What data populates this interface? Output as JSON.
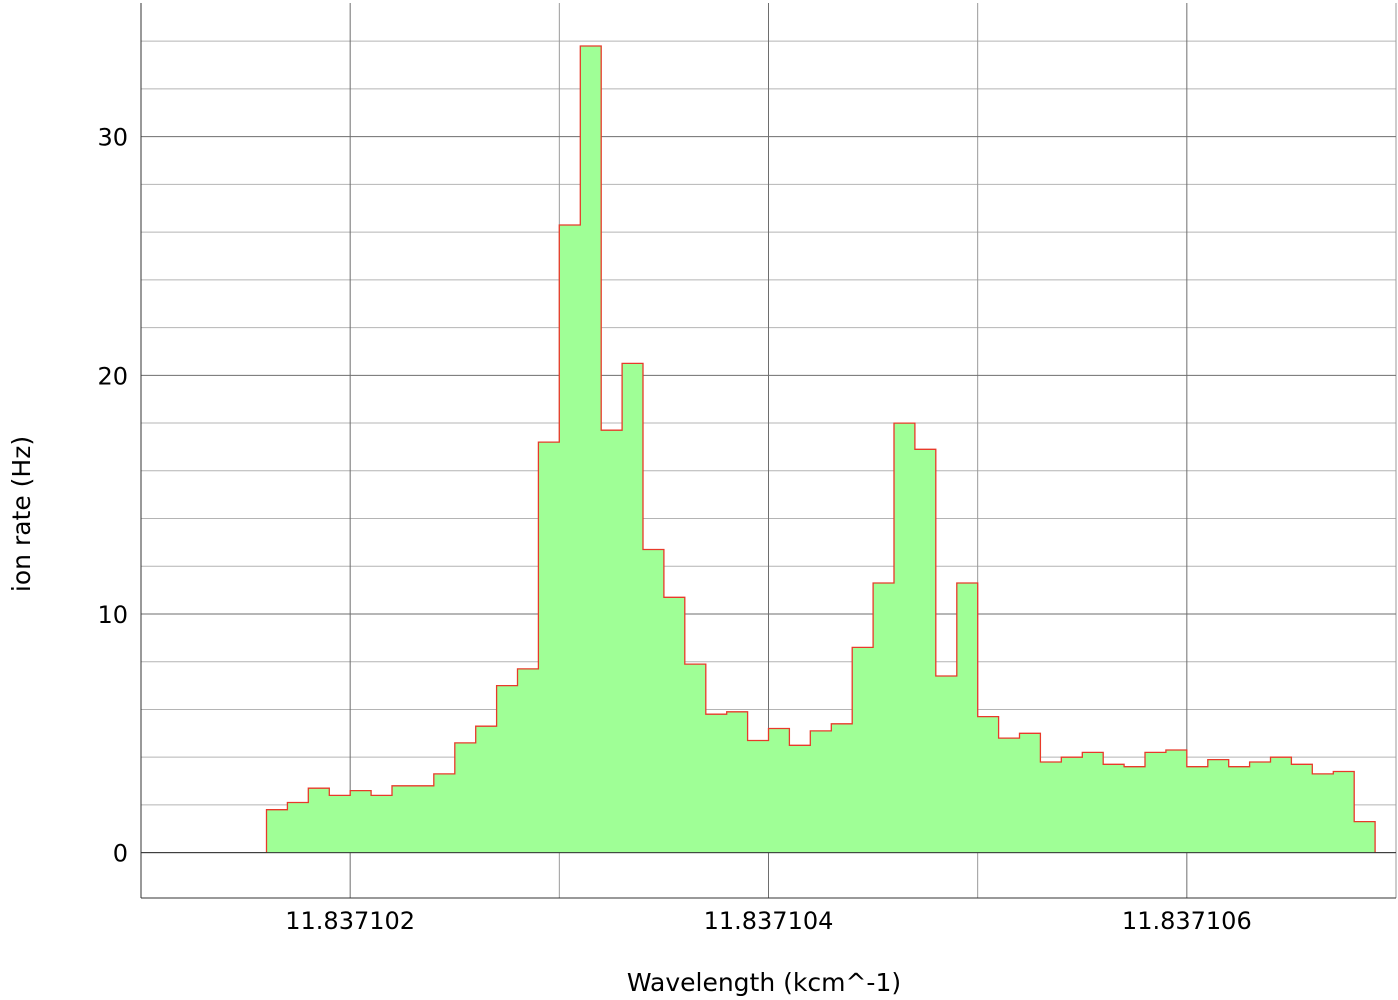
{
  "chart_data": {
    "type": "area",
    "xlabel": "Wavelength (kcm^-1)",
    "ylabel": "ion rate (Hz)",
    "xlim": [
      11.837101,
      11.837107
    ],
    "ylim": [
      -1.9,
      35.6
    ],
    "x_major_ticks": [
      11.837102,
      11.837104,
      11.837106
    ],
    "x_tick_labels": [
      "11.837102",
      "11.837104",
      "11.837106"
    ],
    "x_minor_ticks": [
      11.837103,
      11.837105,
      11.837107
    ],
    "y_major_ticks": [
      0,
      10,
      20,
      30
    ],
    "y_tick_labels": [
      "0",
      "10",
      "20",
      "30"
    ],
    "y_minor_step": 2,
    "grid": true,
    "fill_color": "#9fff96",
    "line_color": "#e83a2a",
    "grid_color": "#8c8c8c",
    "series": [
      {
        "step": "post",
        "x_start": 11.8371016,
        "bin_width": 1e-07,
        "x_end": 11.837107,
        "values": [
          1.8,
          2.1,
          2.7,
          2.4,
          2.6,
          2.4,
          2.8,
          2.8,
          3.3,
          4.6,
          5.3,
          7.0,
          7.7,
          17.2,
          26.3,
          33.8,
          17.7,
          20.5,
          12.7,
          10.7,
          7.9,
          5.8,
          5.9,
          4.7,
          5.2,
          4.5,
          5.1,
          5.4,
          8.6,
          11.3,
          18.0,
          16.9,
          7.4,
          11.3,
          5.7,
          4.8,
          5.0,
          3.8,
          4.0,
          4.2,
          3.7,
          3.6,
          4.2,
          4.3,
          3.6,
          3.9,
          3.6,
          3.8,
          4.0,
          3.7,
          3.3,
          3.4,
          1.3
        ]
      }
    ]
  }
}
